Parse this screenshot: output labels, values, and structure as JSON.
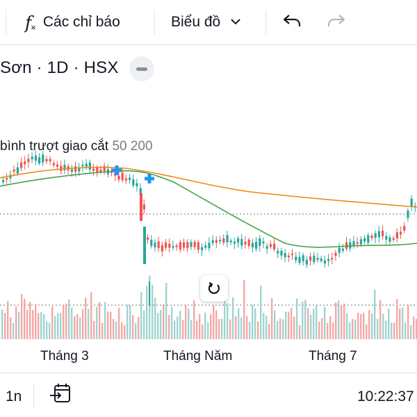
{
  "toolbar": {
    "indicators_label": "Các chỉ báo",
    "chart_type_label": "Biểu đồ"
  },
  "header": {
    "symbol_text": "Sơn · 1D · HSX"
  },
  "legend": {
    "label": "bình trượt giao cắt",
    "params": "50 200"
  },
  "x_axis": {
    "labels": [
      "Tháng 3",
      "Tháng Năm",
      "Tháng 7"
    ]
  },
  "bottom_bar": {
    "interval_label": "1n",
    "clock": "10:22:37"
  },
  "colors": {
    "up": "#26a69a",
    "down": "#ef5350",
    "ma50": "#43a047",
    "ma200": "#ef8a1a",
    "cross_marker": "#2196f3",
    "volume_up": "#9fd5cf",
    "volume_down": "#f5a8a6"
  },
  "chart_data": {
    "type": "candlestick",
    "indicator": "moving average crossover (50, 200)",
    "x_ticks": [
      "Tháng 3",
      "Tháng Năm",
      "Tháng 7"
    ],
    "series": [
      {
        "name": "50",
        "description": "green moving average"
      },
      {
        "name": "200",
        "description": "orange moving average"
      }
    ],
    "grid": false
  }
}
